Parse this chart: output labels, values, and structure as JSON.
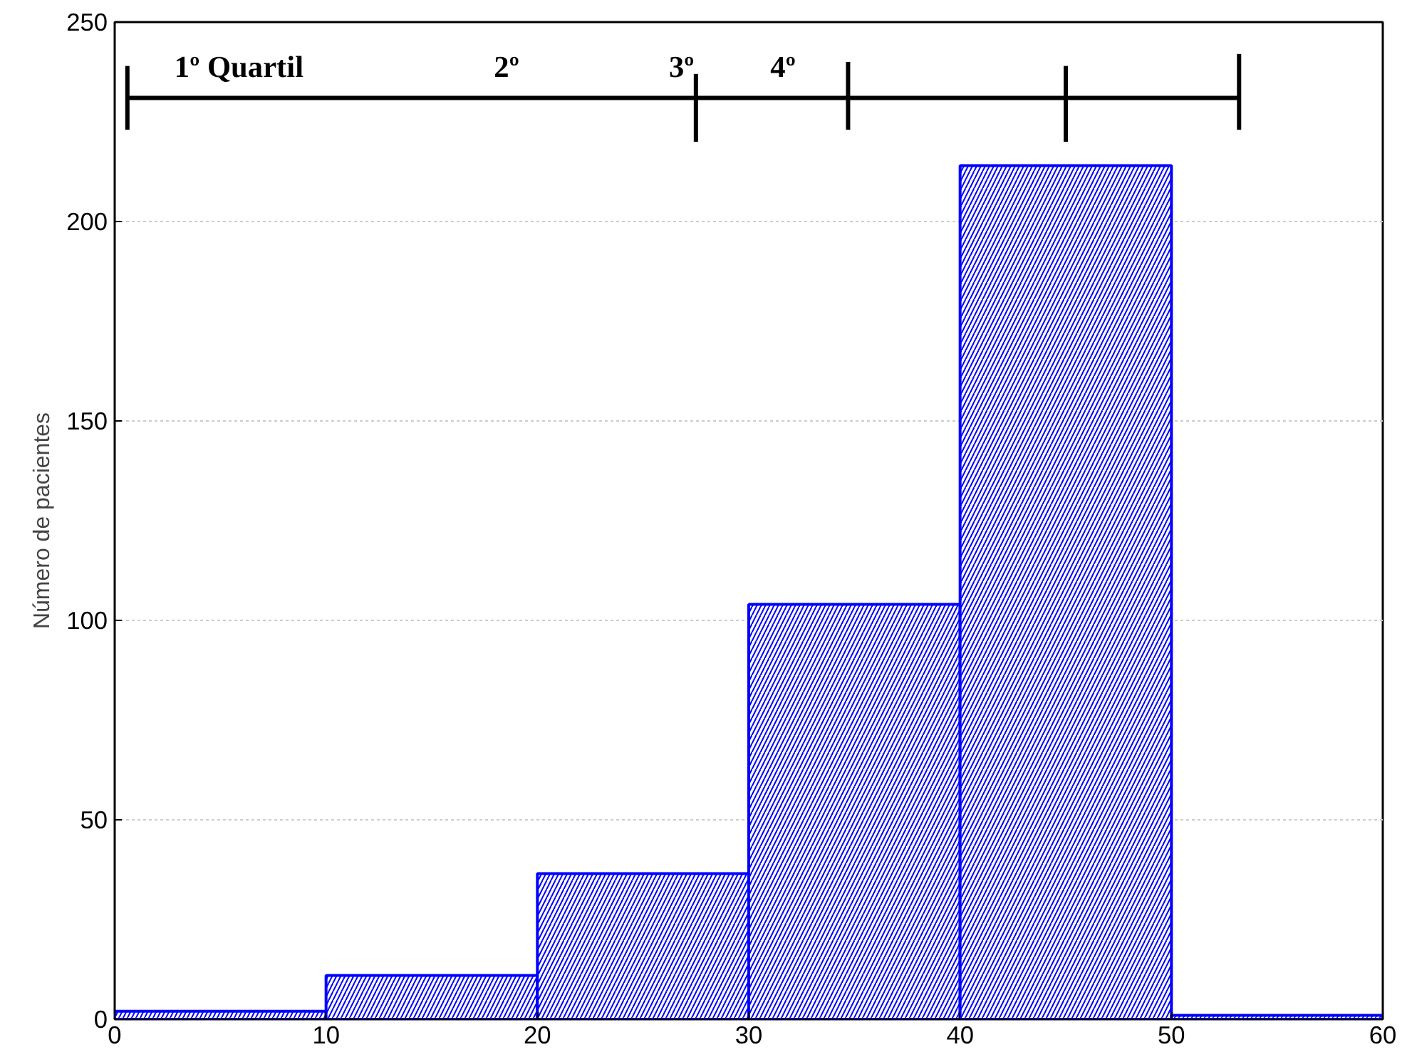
{
  "chart_data": {
    "type": "histogram",
    "ylabel": "Número de pacientes",
    "bins": [
      0,
      10,
      20,
      30,
      40,
      50,
      60
    ],
    "values": [
      2,
      11,
      36.5,
      104,
      214,
      1
    ],
    "color": "#0000ff",
    "xlim": [
      0,
      60
    ],
    "ylim": [
      0,
      250
    ],
    "xticks": [
      0,
      10,
      20,
      30,
      40,
      50,
      60
    ],
    "yticks": [
      0,
      50,
      100,
      150,
      200,
      250
    ],
    "grid": "y",
    "series": [
      {
        "type": "line",
        "x": [
          0.6,
          27.5,
          34.7,
          45,
          53.2
        ],
        "values": [
          231,
          231,
          231,
          231,
          231
        ],
        "color": "#000000",
        "errors": [
          [
            223,
            239
          ],
          [
            220,
            237
          ],
          [
            223,
            240
          ],
          [
            220,
            239
          ],
          [
            223,
            242
          ]
        ]
      }
    ],
    "annotations": [
      "1º Quartil",
      "2º",
      "3º",
      "4º"
    ]
  }
}
